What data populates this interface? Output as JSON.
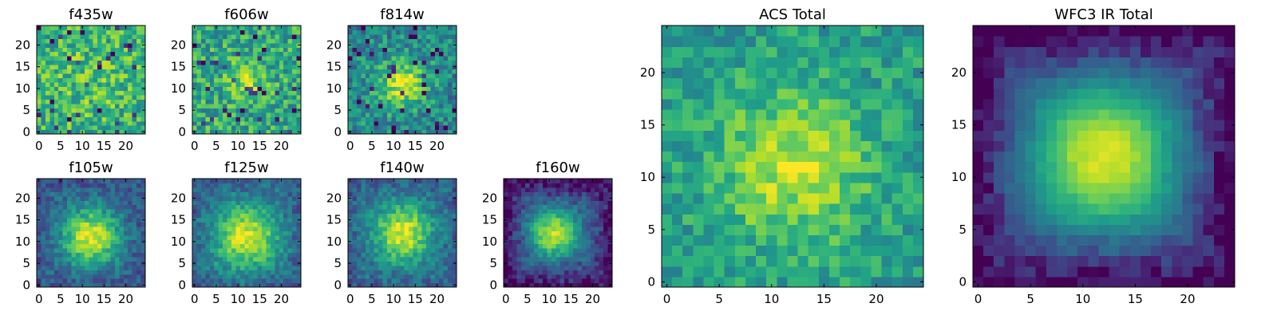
{
  "chart_data": [
    {
      "type": "heatmap",
      "title": "f435w",
      "n": 25,
      "xticks": [
        0,
        5,
        10,
        15,
        20
      ],
      "yticks": [
        0,
        5,
        10,
        15,
        20
      ],
      "peak": [
        12,
        12
      ],
      "sigma": 8,
      "amp": 0.1,
      "noise": 0.45,
      "base": 0.62,
      "seed": 11,
      "edge_dark": 0
    },
    {
      "type": "heatmap",
      "title": "f606w",
      "n": 25,
      "xticks": [
        0,
        5,
        10,
        15,
        20
      ],
      "yticks": [
        0,
        5,
        10,
        15,
        20
      ],
      "peak": [
        12,
        12
      ],
      "sigma": 3,
      "amp": 0.25,
      "noise": 0.45,
      "base": 0.6,
      "seed": 23,
      "edge_dark": 0
    },
    {
      "type": "heatmap",
      "title": "f814w",
      "n": 25,
      "xticks": [
        0,
        5,
        10,
        15,
        20
      ],
      "yticks": [
        0,
        5,
        10,
        15,
        20
      ],
      "peak": [
        12,
        11
      ],
      "sigma": 3.5,
      "amp": 0.45,
      "noise": 0.4,
      "base": 0.5,
      "seed": 37,
      "edge_dark": 0.05
    },
    {
      "type": "heatmap",
      "title": "f105w",
      "n": 25,
      "xticks": [
        0,
        5,
        10,
        15,
        20
      ],
      "yticks": [
        0,
        5,
        10,
        15,
        20
      ],
      "peak": [
        12,
        11
      ],
      "sigma": 4.5,
      "amp": 0.6,
      "noise": 0.25,
      "base": 0.35,
      "seed": 41,
      "edge_dark": 0.1
    },
    {
      "type": "heatmap",
      "title": "f125w",
      "n": 25,
      "xticks": [
        0,
        5,
        10,
        15,
        20
      ],
      "yticks": [
        0,
        5,
        10,
        15,
        20
      ],
      "peak": [
        12,
        11
      ],
      "sigma": 5,
      "amp": 0.55,
      "noise": 0.25,
      "base": 0.4,
      "seed": 53,
      "edge_dark": 0.1
    },
    {
      "type": "heatmap",
      "title": "f140w",
      "n": 25,
      "xticks": [
        0,
        5,
        10,
        15,
        20
      ],
      "yticks": [
        0,
        5,
        10,
        15,
        20
      ],
      "peak": [
        12,
        12
      ],
      "sigma": 4.5,
      "amp": 0.55,
      "noise": 0.25,
      "base": 0.4,
      "seed": 67,
      "edge_dark": 0.1
    },
    {
      "type": "heatmap",
      "title": "f160w",
      "n": 25,
      "xticks": [
        0,
        5,
        10,
        15,
        20
      ],
      "yticks": [
        0,
        5,
        10,
        15,
        20
      ],
      "peak": [
        11,
        12
      ],
      "sigma": 4,
      "amp": 0.6,
      "noise": 0.2,
      "base": 0.3,
      "seed": 71,
      "edge_dark": 0.3
    },
    {
      "type": "heatmap",
      "title": "ACS Total",
      "n": 25,
      "xticks": [
        0,
        5,
        10,
        15,
        20
      ],
      "yticks": [
        0,
        5,
        10,
        15,
        20
      ],
      "peak": [
        12,
        11
      ],
      "sigma": 5,
      "amp": 0.35,
      "noise": 0.3,
      "base": 0.55,
      "seed": 83,
      "edge_dark": 0
    },
    {
      "type": "heatmap",
      "title": "WFC3 IR Total",
      "n": 25,
      "xticks": [
        0,
        5,
        10,
        15,
        20
      ],
      "yticks": [
        0,
        5,
        10,
        15,
        20
      ],
      "peak": [
        12,
        12
      ],
      "sigma": 5,
      "amp": 0.65,
      "noise": 0.07,
      "base": 0.3,
      "seed": 97,
      "edge_dark": 0.35
    }
  ]
}
